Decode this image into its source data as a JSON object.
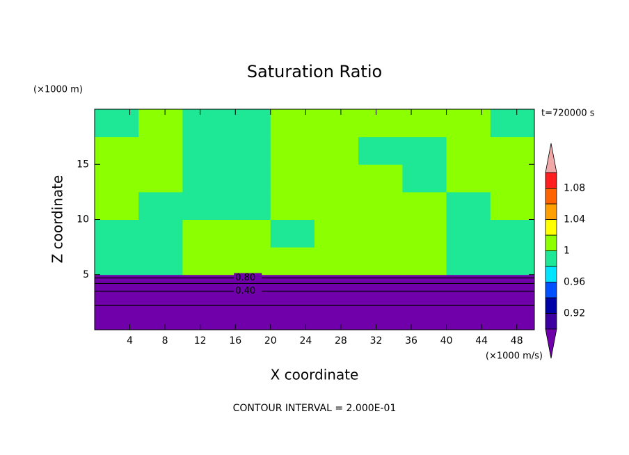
{
  "chart_data": {
    "type": "contour",
    "title": "Saturation Ratio",
    "x_label": "X coordinate",
    "y_label": "Z coordinate",
    "x_units": "(×1000 m/s)",
    "y_units": "(×1000 m)",
    "time_label": "t=720000 s",
    "footer": "CONTOUR INTERVAL = 2.000E-01",
    "xlim": [
      0,
      50
    ],
    "ylim": [
      0,
      20
    ],
    "xticks": [
      4,
      8,
      12,
      16,
      20,
      24,
      28,
      32,
      36,
      40,
      44,
      48
    ],
    "yticks": [
      5,
      10,
      15
    ],
    "x_edges": [
      0,
      5,
      10,
      15,
      20,
      25,
      30,
      35,
      40,
      45,
      50
    ],
    "z_edges": [
      0,
      2.5,
      5,
      7.5,
      10,
      12.5,
      15,
      17.5,
      20
    ],
    "field": [
      [
        0.1,
        0.1,
        0.1,
        0.1,
        0.1,
        0.1,
        0.1,
        0.1,
        0.1,
        0.1
      ],
      [
        0.6,
        0.6,
        0.6,
        0.6,
        0.6,
        0.6,
        0.6,
        0.6,
        0.6,
        0.6
      ],
      [
        0.99,
        0.99,
        1.01,
        1.01,
        1.01,
        1.01,
        1.01,
        1.01,
        0.99,
        0.99
      ],
      [
        0.99,
        0.99,
        1.01,
        1.01,
        0.99,
        1.01,
        1.01,
        1.01,
        0.99,
        0.99
      ],
      [
        1.01,
        0.99,
        0.99,
        0.99,
        1.01,
        1.01,
        1.01,
        1.01,
        0.99,
        1.01
      ],
      [
        1.01,
        1.01,
        0.99,
        0.99,
        1.01,
        1.01,
        1.01,
        0.99,
        1.01,
        1.01
      ],
      [
        1.01,
        1.01,
        0.99,
        0.99,
        1.01,
        1.01,
        0.99,
        0.99,
        1.01,
        1.01
      ],
      [
        0.99,
        1.01,
        0.99,
        0.99,
        1.01,
        1.01,
        1.01,
        1.01,
        1.01,
        0.99
      ]
    ],
    "levels": [
      0.9,
      0.92,
      0.94,
      0.96,
      0.98,
      1,
      1.02,
      1.04,
      1.06,
      1.08,
      1.1
    ],
    "colors": [
      "#3c00a0",
      "#0000a8",
      "#0050ff",
      "#00e4ff",
      "#1ee896",
      "#8cff00",
      "#ffff00",
      "#ffa000",
      "#ff6400",
      "#ff1e1e"
    ],
    "under_color": "#7000aa",
    "over_color": "#f0a8a8",
    "colorbar_ticks": [
      0.92,
      0.96,
      1,
      1.04,
      1.08
    ],
    "contours": [
      {
        "level": 0.8,
        "label": "0.80",
        "z": 4.7
      },
      {
        "level": 0.6,
        "z": 4.2
      },
      {
        "level": 0.4,
        "label": "0.40",
        "z": 3.5
      },
      {
        "level": 0.2,
        "z": 2.2
      }
    ]
  }
}
